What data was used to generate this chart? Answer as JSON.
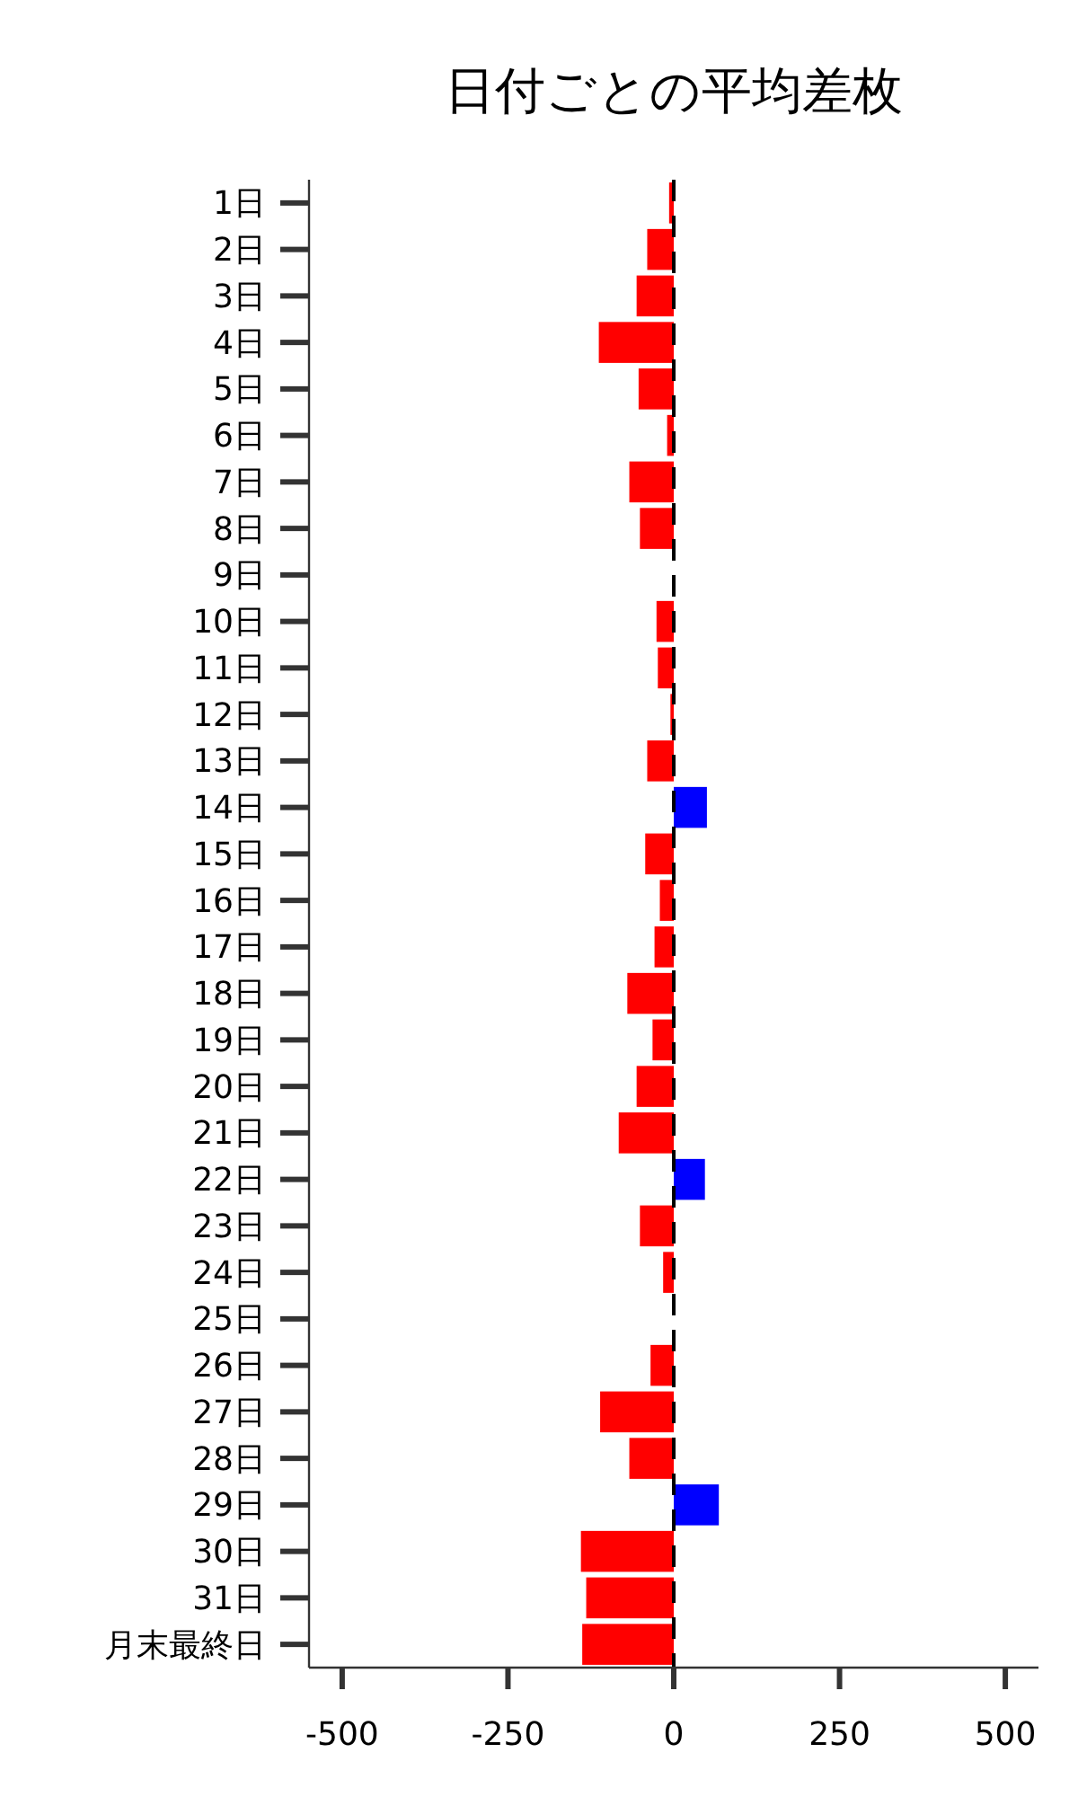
{
  "chart_data": {
    "type": "bar",
    "orientation": "horizontal",
    "title": "日付ごとの平均差枚",
    "categories": [
      "1日",
      "2日",
      "3日",
      "4日",
      "5日",
      "6日",
      "7日",
      "8日",
      "9日",
      "10日",
      "11日",
      "12日",
      "13日",
      "14日",
      "15日",
      "16日",
      "17日",
      "18日",
      "19日",
      "20日",
      "21日",
      "22日",
      "23日",
      "24日",
      "25日",
      "26日",
      "27日",
      "28日",
      "29日",
      "30日",
      "31日",
      "月末最終日"
    ],
    "values": [
      -7,
      -40,
      -56,
      -113,
      -53,
      -10,
      -67,
      -51,
      0,
      -26,
      -24,
      -5,
      -40,
      50,
      -43,
      -21,
      -29,
      -70,
      -32,
      -56,
      -83,
      47,
      -51,
      -16,
      0,
      -35,
      -111,
      -67,
      68,
      -140,
      -132,
      -138
    ],
    "colors": [
      "#ff0000",
      "#ff0000",
      "#ff0000",
      "#ff0000",
      "#ff0000",
      "#ff0000",
      "#ff0000",
      "#ff0000",
      "#ff0000",
      "#ff0000",
      "#ff0000",
      "#ff0000",
      "#ff0000",
      "#0000ff",
      "#ff0000",
      "#ff0000",
      "#ff0000",
      "#ff0000",
      "#ff0000",
      "#ff0000",
      "#ff0000",
      "#0000ff",
      "#ff0000",
      "#ff0000",
      "#ff0000",
      "#ff0000",
      "#ff0000",
      "#ff0000",
      "#0000ff",
      "#ff0000",
      "#ff0000",
      "#ff0000"
    ],
    "xlim": [
      -550,
      550
    ],
    "xticks": [
      -500,
      -250,
      0,
      250,
      500
    ],
    "ref_lines": [
      {
        "axis": "x",
        "value": 0,
        "color": "#000000",
        "line_style": "dashed"
      }
    ],
    "grid": false
  }
}
